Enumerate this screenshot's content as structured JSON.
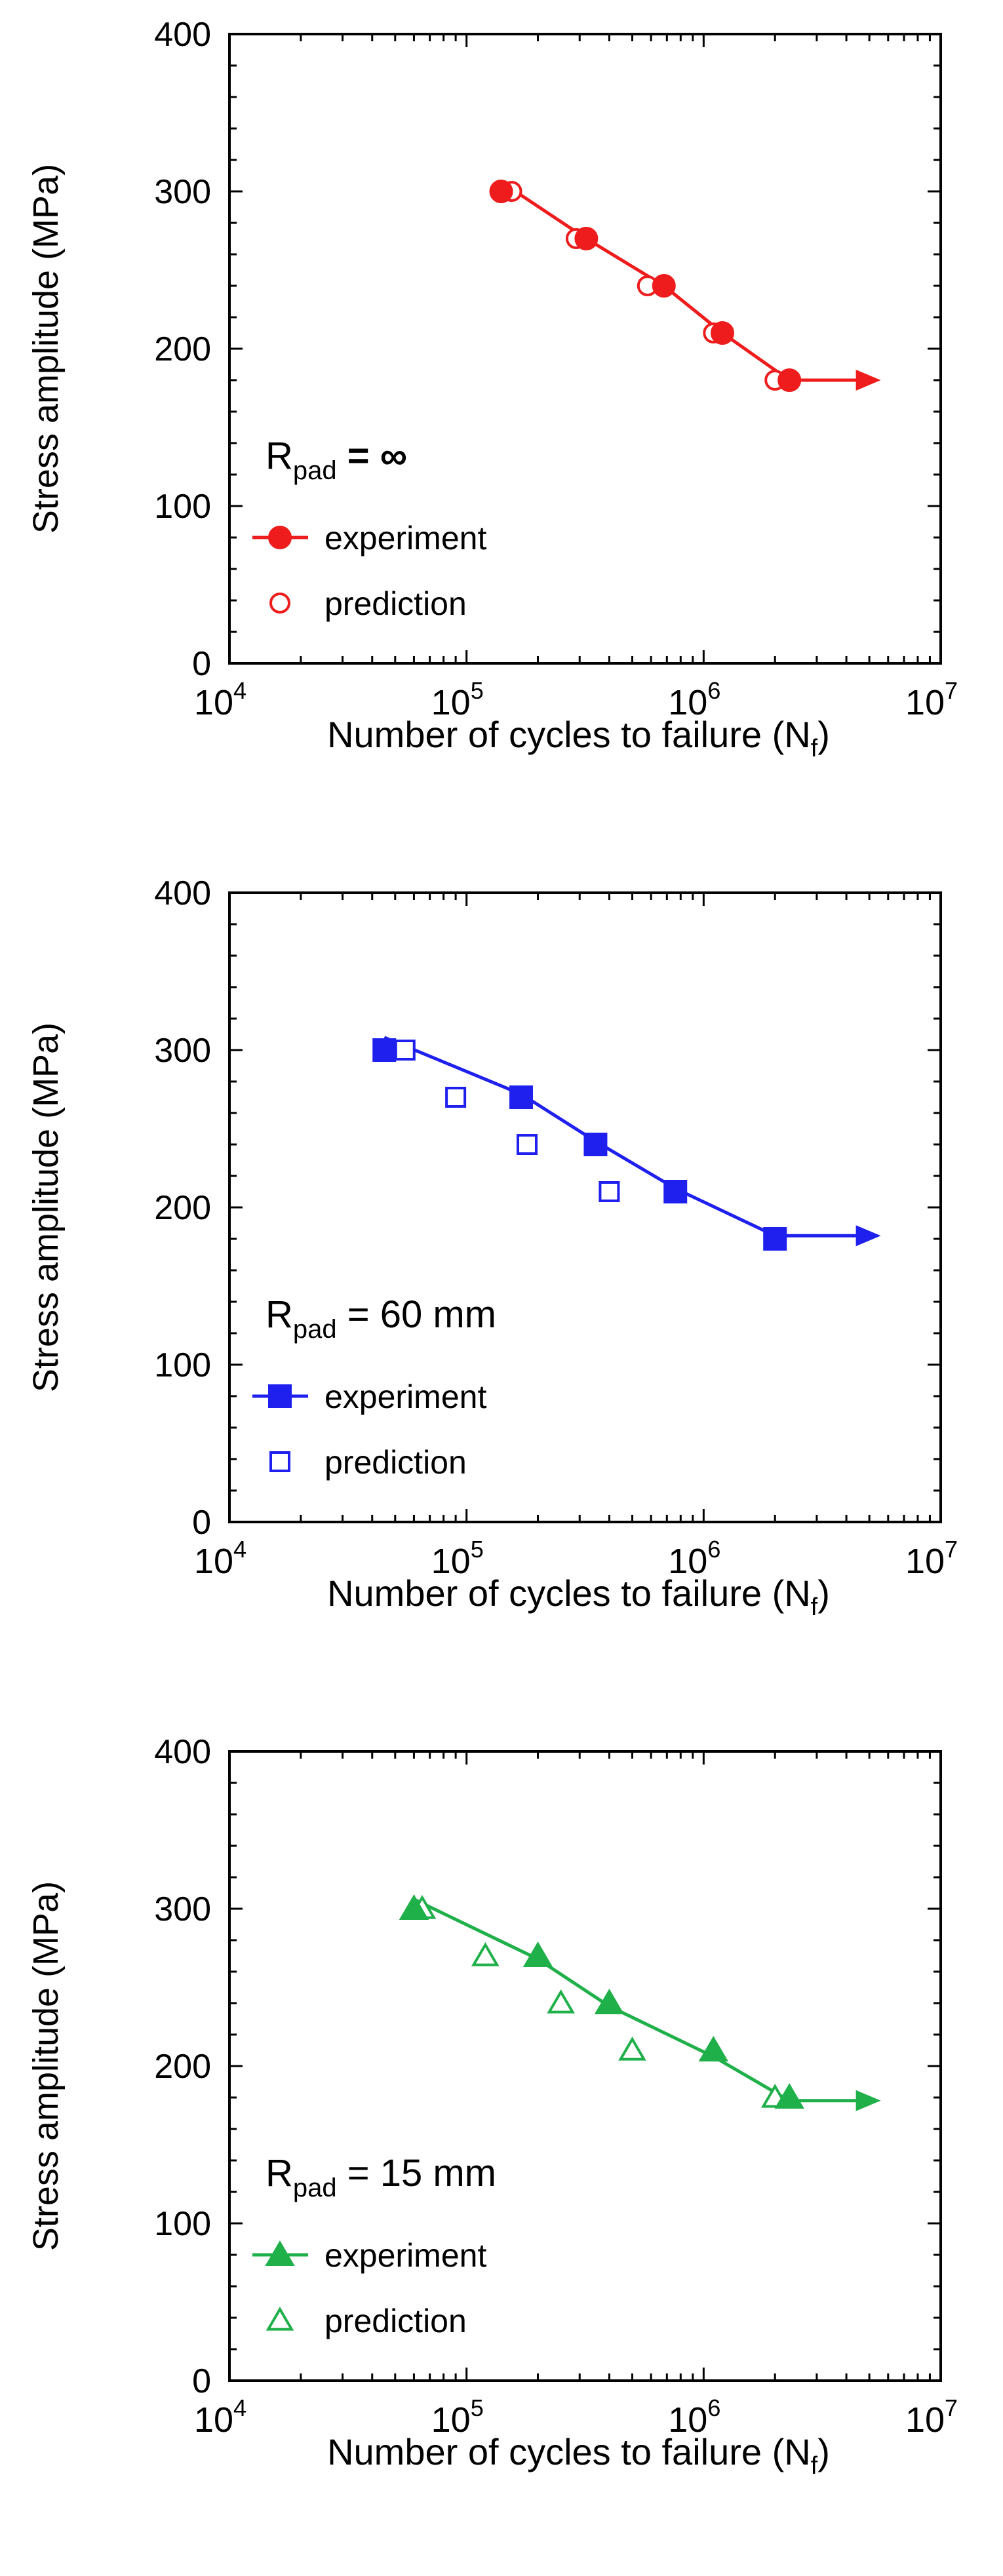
{
  "chart_data": [
    {
      "type": "scatter",
      "color": "#ee1c1c",
      "marker": "circle",
      "xscale": "log",
      "xlim": [
        10000,
        10000000
      ],
      "ylim": [
        0,
        400
      ],
      "xticks": [
        10000,
        100000,
        1000000,
        10000000
      ],
      "xtick_labels": [
        {
          "base": "10",
          "exp": "4"
        },
        {
          "base": "10",
          "exp": "5"
        },
        {
          "base": "10",
          "exp": "6"
        },
        {
          "base": "10",
          "exp": "7"
        }
      ],
      "yticks": [
        0,
        100,
        200,
        300,
        400
      ],
      "ytick_labels": [
        "0",
        "100",
        "200",
        "300",
        "400"
      ],
      "xlabel": {
        "main": "Number of cycles to failure (N",
        "sub": "f",
        "close": ")"
      },
      "ylabel": "Stress amplitude (MPa)",
      "legend_title": {
        "main": "R",
        "sub": "pad",
        "value": " = ∞"
      },
      "series": [
        {
          "name": "experiment",
          "style": "filled-line",
          "x": [
            140000,
            320000,
            680000,
            1200000,
            2300000
          ],
          "y": [
            300,
            270,
            240,
            210,
            180
          ]
        },
        {
          "name": "prediction",
          "style": "hollow",
          "x": [
            155000,
            290000,
            580000,
            1100000,
            2000000
          ],
          "y": [
            300,
            270,
            240,
            210,
            180
          ]
        }
      ],
      "fit_line": {
        "x": [
          140000,
          320000,
          680000,
          1200000,
          2300000,
          4500000
        ],
        "y": [
          306,
          270,
          240,
          210,
          180,
          180
        ],
        "arrow": true
      }
    },
    {
      "type": "scatter",
      "color": "#1f20ee",
      "marker": "square",
      "xscale": "log",
      "xlim": [
        10000,
        10000000
      ],
      "ylim": [
        0,
        400
      ],
      "xticks": [
        10000,
        100000,
        1000000,
        10000000
      ],
      "xtick_labels": [
        {
          "base": "10",
          "exp": "4"
        },
        {
          "base": "10",
          "exp": "5"
        },
        {
          "base": "10",
          "exp": "6"
        },
        {
          "base": "10",
          "exp": "7"
        }
      ],
      "yticks": [
        0,
        100,
        200,
        300,
        400
      ],
      "ytick_labels": [
        "0",
        "100",
        "200",
        "300",
        "400"
      ],
      "xlabel": {
        "main": "Number of cycles to failure (N",
        "sub": "f",
        "close": ")"
      },
      "ylabel": "Stress amplitude (MPa)",
      "legend_title": {
        "main": "R",
        "sub": "pad",
        "value": " = 60 mm"
      },
      "series": [
        {
          "name": "experiment",
          "style": "filled-line",
          "x": [
            45000,
            170000,
            350000,
            760000,
            2000000
          ],
          "y": [
            300,
            270,
            240,
            210,
            180
          ]
        },
        {
          "name": "prediction",
          "style": "hollow",
          "x": [
            55000,
            90000,
            180000,
            400000,
            2000000
          ],
          "y": [
            300,
            270,
            240,
            210,
            180
          ]
        }
      ],
      "fit_line": {
        "x": [
          45000,
          170000,
          350000,
          760000,
          2000000,
          4500000
        ],
        "y": [
          308,
          272,
          242,
          212,
          182,
          182
        ],
        "arrow": true
      }
    },
    {
      "type": "scatter",
      "color": "#1fb04a",
      "marker": "triangle",
      "xscale": "log",
      "xlim": [
        10000,
        10000000
      ],
      "ylim": [
        0,
        400
      ],
      "xticks": [
        10000,
        100000,
        1000000,
        10000000
      ],
      "xtick_labels": [
        {
          "base": "10",
          "exp": "4"
        },
        {
          "base": "10",
          "exp": "5"
        },
        {
          "base": "10",
          "exp": "6"
        },
        {
          "base": "10",
          "exp": "7"
        }
      ],
      "yticks": [
        0,
        100,
        200,
        300,
        400
      ],
      "ytick_labels": [
        "0",
        "100",
        "200",
        "300",
        "400"
      ],
      "xlabel": {
        "main": "Number of cycles to failure (N",
        "sub": "f",
        "close": ")"
      },
      "ylabel": "Stress amplitude (MPa)",
      "legend_title": {
        "main": "R",
        "sub": "pad",
        "value": " = 15 mm"
      },
      "series": [
        {
          "name": "experiment",
          "style": "filled-line",
          "x": [
            60000,
            200000,
            400000,
            1100000,
            2300000
          ],
          "y": [
            300,
            270,
            240,
            210,
            180
          ]
        },
        {
          "name": "prediction",
          "style": "hollow",
          "x": [
            65000,
            120000,
            250000,
            500000,
            2000000
          ],
          "y": [
            300,
            270,
            240,
            210,
            180
          ]
        }
      ],
      "fit_line": {
        "x": [
          60000,
          200000,
          400000,
          1100000,
          2300000,
          4500000
        ],
        "y": [
          306,
          268,
          238,
          206,
          178,
          178
        ],
        "arrow": true
      }
    }
  ]
}
